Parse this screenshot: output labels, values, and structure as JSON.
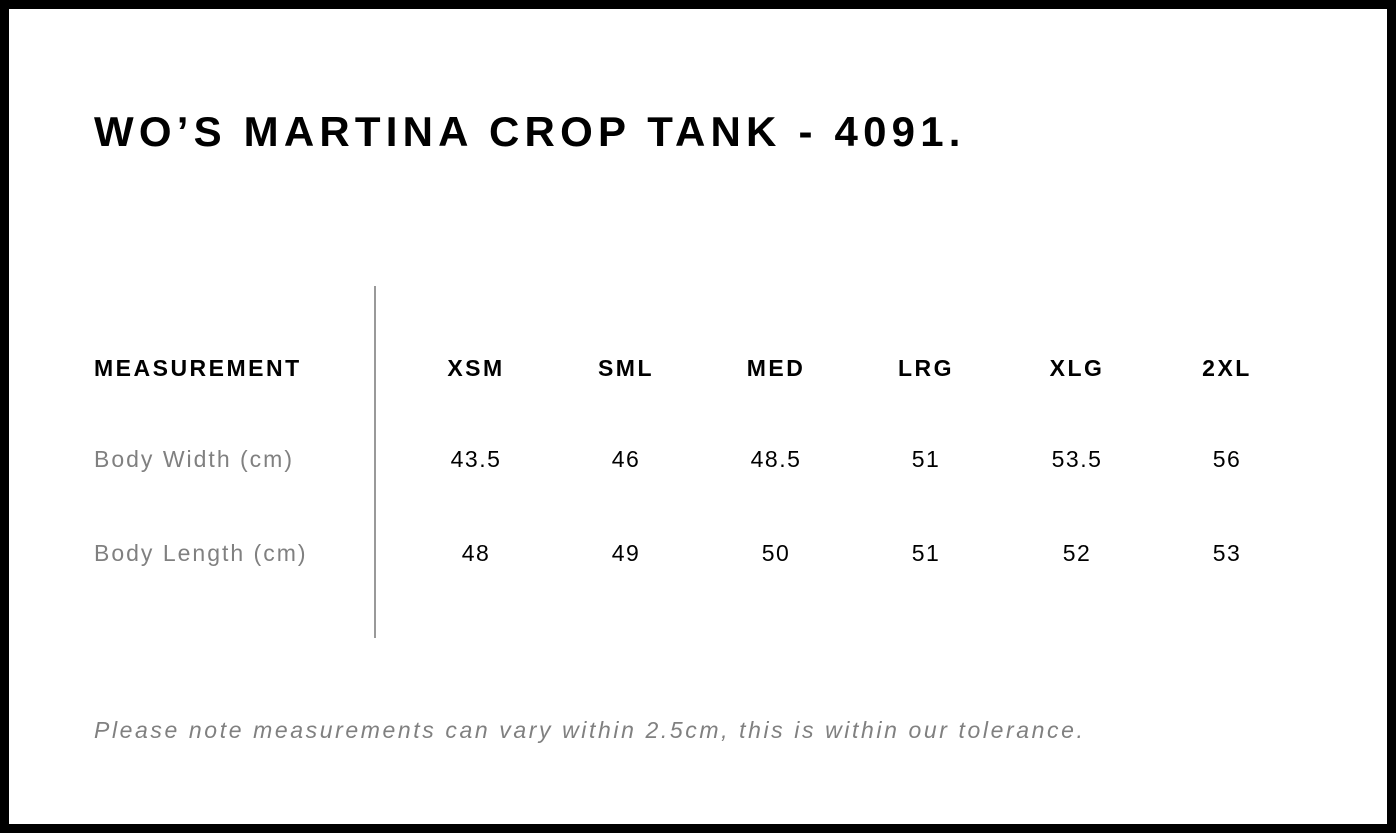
{
  "title": "WO’S MARTINA CROP TANK - 4091.",
  "table": {
    "header": [
      "MEASUREMENT",
      "XSM",
      "SML",
      "MED",
      "LRG",
      "XLG",
      "2XL"
    ],
    "rows": [
      {
        "label": "Body Width (cm)",
        "values": [
          "43.5",
          "46",
          "48.5",
          "51",
          "53.5",
          "56"
        ]
      },
      {
        "label": "Body Length (cm)",
        "values": [
          "48",
          "49",
          "50",
          "51",
          "52",
          "53"
        ]
      }
    ]
  },
  "note": "Please note measurements can vary within 2.5cm, this is within our tolerance."
}
